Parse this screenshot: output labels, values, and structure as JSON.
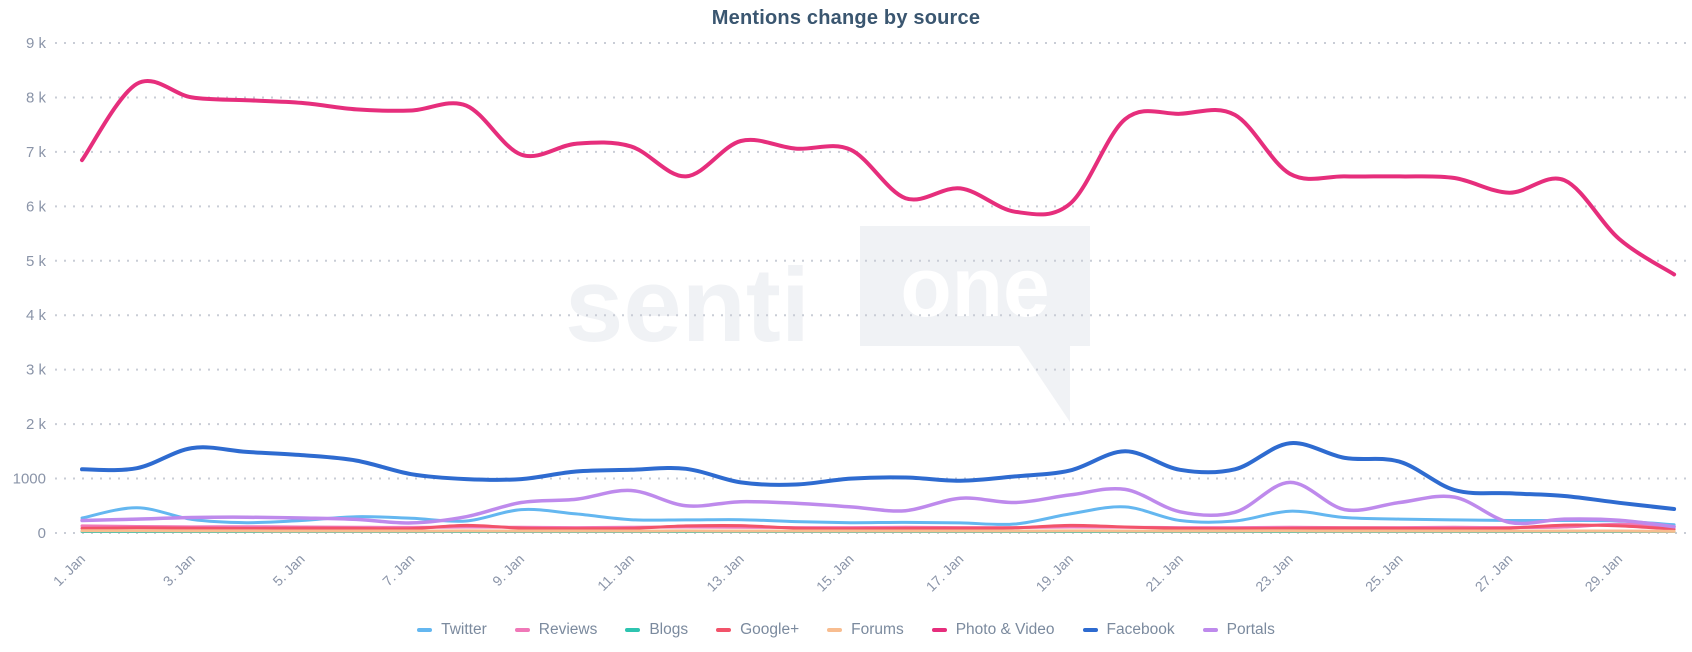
{
  "header": {
    "title": "Mentions change by source"
  },
  "watermark": {
    "text": "senti",
    "boxed_text": "one"
  },
  "chart_data": {
    "type": "line",
    "title": "Mentions change by source",
    "x_unit": "day of January",
    "x": [
      1,
      2,
      3,
      4,
      5,
      6,
      7,
      8,
      9,
      10,
      11,
      12,
      13,
      14,
      15,
      16,
      17,
      18,
      19,
      20,
      21,
      22,
      23,
      24,
      25,
      26,
      27,
      28,
      29,
      30
    ],
    "x_ticks": [
      1,
      3,
      5,
      7,
      9,
      11,
      13,
      15,
      17,
      19,
      21,
      23,
      25,
      27,
      29
    ],
    "x_tick_labels": [
      "1. Jan",
      "3. Jan",
      "5. Jan",
      "7. Jan",
      "9. Jan",
      "11. Jan",
      "13. Jan",
      "15. Jan",
      "17. Jan",
      "19. Jan",
      "21. Jan",
      "23. Jan",
      "25. Jan",
      "27. Jan",
      "29. Jan"
    ],
    "ylim": [
      0,
      9000
    ],
    "y_ticks": [
      0,
      1000,
      2000,
      3000,
      4000,
      5000,
      6000,
      7000,
      8000,
      9000
    ],
    "y_tick_labels": [
      "0",
      "1000",
      "2 k",
      "3 k",
      "4 k",
      "5 k",
      "6 k",
      "7 k",
      "8 k",
      "9 k"
    ],
    "grid": "horizontal dotted",
    "legend_position": "bottom",
    "gridline_color": "#c9cdd6",
    "series": [
      {
        "name": "Twitter",
        "color": "#64b7f0",
        "width": 3,
        "values": [
          275,
          465,
          250,
          190,
          230,
          300,
          270,
          220,
          430,
          350,
          245,
          240,
          245,
          210,
          190,
          195,
          185,
          165,
          350,
          480,
          230,
          220,
          400,
          285,
          255,
          240,
          230,
          230,
          220,
          150
        ]
      },
      {
        "name": "Reviews",
        "color": "#f078b8",
        "width": 3,
        "values": [
          130,
          120,
          112,
          115,
          110,
          106,
          102,
          110,
          105,
          100,
          104,
          110,
          106,
          100,
          100,
          104,
          100,
          100,
          110,
          106,
          100,
          100,
          105,
          100,
          100,
          104,
          100,
          110,
          160,
          115
        ]
      },
      {
        "name": "Blogs",
        "color": "#2ec4b0",
        "width": 3,
        "values": [
          22,
          18,
          16,
          17,
          15,
          14,
          15,
          16,
          15,
          14,
          15,
          16,
          15,
          14,
          15,
          15,
          14,
          15,
          16,
          15,
          14,
          15,
          16,
          15,
          14,
          15,
          15,
          14,
          15,
          12
        ]
      },
      {
        "name": "Google+",
        "color": "#f2536a",
        "width": 3,
        "values": [
          85,
          95,
          90,
          85,
          90,
          85,
          80,
          140,
          90,
          80,
          85,
          130,
          135,
          90,
          80,
          85,
          90,
          95,
          140,
          110,
          85,
          80,
          85,
          90,
          85,
          80,
          90,
          145,
          130,
          70
        ]
      },
      {
        "name": "Forums",
        "color": "#f8bd90",
        "width": 3,
        "values": [
          42,
          40,
          38,
          38,
          37,
          36,
          37,
          38,
          37,
          36,
          37,
          38,
          37,
          36,
          37,
          37,
          36,
          37,
          38,
          37,
          36,
          37,
          38,
          37,
          36,
          37,
          37,
          36,
          37,
          30
        ]
      },
      {
        "name": "Photo & Video",
        "color": "#e62e7c",
        "width": 4,
        "values": [
          6850,
          8250,
          8000,
          7950,
          7900,
          7780,
          7760,
          7850,
          6950,
          7150,
          7100,
          6550,
          7200,
          7060,
          7040,
          6150,
          6330,
          5900,
          6050,
          7600,
          7700,
          7680,
          6600,
          6550,
          6550,
          6520,
          6250,
          6480,
          5400,
          4750
        ]
      },
      {
        "name": "Facebook",
        "color": "#2e6bd0",
        "width": 4,
        "values": [
          1170,
          1190,
          1560,
          1490,
          1430,
          1330,
          1080,
          990,
          990,
          1130,
          1160,
          1180,
          930,
          890,
          1000,
          1020,
          960,
          1040,
          1150,
          1500,
          1160,
          1170,
          1650,
          1380,
          1310,
          790,
          730,
          680,
          555,
          440
        ]
      },
      {
        "name": "Portals",
        "color": "#be8aec",
        "width": 3.5,
        "values": [
          230,
          255,
          285,
          290,
          275,
          250,
          185,
          300,
          560,
          620,
          780,
          500,
          575,
          545,
          480,
          410,
          640,
          560,
          700,
          800,
          390,
          380,
          930,
          430,
          560,
          660,
          195,
          255,
          235,
          115
        ]
      }
    ]
  }
}
